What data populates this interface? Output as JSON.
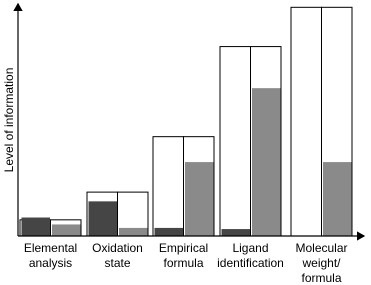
{
  "chart_data": {
    "type": "bar",
    "y_label": "Level of information",
    "categories": [
      [
        "Elemental",
        "analysis"
      ],
      [
        "Oxidation",
        "state"
      ],
      [
        "Empirical",
        "formula"
      ],
      [
        "Ligand",
        "identification"
      ],
      [
        "Molecular",
        "weight/",
        "formula"
      ]
    ],
    "outline": {
      "color": "#ffffff",
      "values": [
        7,
        19,
        43,
        82,
        99
      ]
    },
    "series": [
      {
        "color": "#454545",
        "values": [
          8,
          15,
          3.5,
          3,
          0
        ]
      },
      {
        "color": "#8a8a8a",
        "values": [
          5,
          3.5,
          32,
          64,
          32
        ]
      }
    ],
    "ylim": [
      0,
      100
    ]
  }
}
